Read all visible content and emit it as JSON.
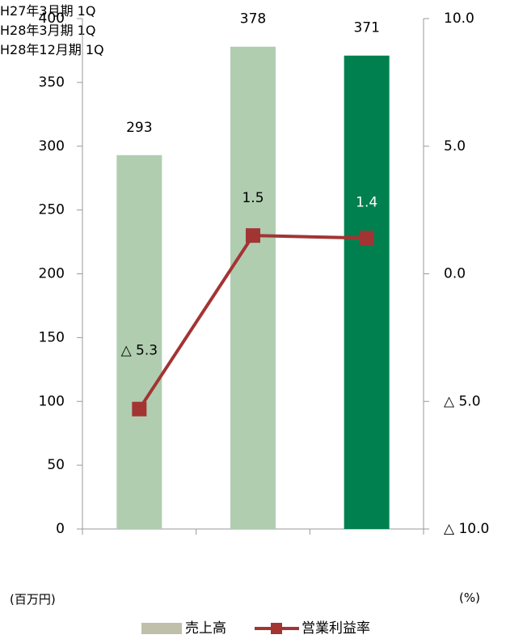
{
  "chart_data": {
    "type": "bar_line",
    "categories": [
      "H27年3月期\n1Q",
      "H28年3月期\n1Q",
      "H28年12月期\n1Q"
    ],
    "y_unit": "(百万円)",
    "y2_unit": "(%)",
    "ylim": [
      0,
      400
    ],
    "yticks": [
      0,
      50,
      100,
      150,
      200,
      250,
      300,
      350,
      400
    ],
    "y2lim": [
      -10,
      10
    ],
    "y2ticks": [
      {
        "value": -10,
        "label": "△ 10.0"
      },
      {
        "value": -5,
        "label": "△ 5.0"
      },
      {
        "value": 0,
        "label": "0.0"
      },
      {
        "value": 5,
        "label": "5.0"
      },
      {
        "value": 10,
        "label": "10.0"
      }
    ],
    "legend": "bottom",
    "series": [
      {
        "name": "売上高",
        "type": "bar",
        "color": "#c0bfaa",
        "colors": [
          "#b0cdb0",
          "#b0cdb0",
          "#00804f"
        ],
        "values": [
          293,
          378,
          371
        ]
      },
      {
        "name": "営業利益率",
        "type": "line",
        "axis": "y2",
        "color": "#a33434",
        "values": [
          -5.3,
          1.5,
          1.4
        ],
        "value_labels": [
          "△ 5.3",
          "1.5",
          "1.4"
        ],
        "label_colors": [
          "#000",
          "#000",
          "#fff"
        ]
      }
    ]
  }
}
